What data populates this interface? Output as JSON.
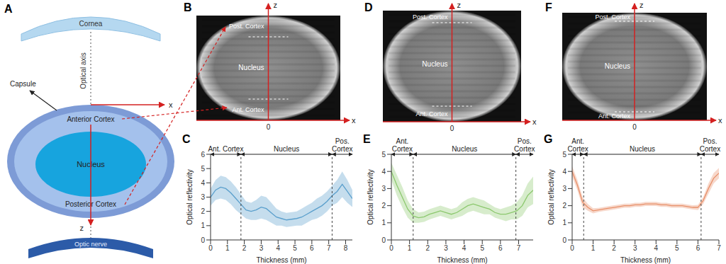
{
  "diagram": {
    "panel": "A",
    "labels": {
      "cornea": "Cornea",
      "optical_axis": "Optical axis",
      "capsule": "Capsule",
      "x_axis": "x",
      "anterior_cortex": "Anterior Cortex",
      "nucleus": "Nucleus",
      "posterior_cortex": "Posterior Cortex",
      "z_axis": "z",
      "optic_nerve": "Optic nerve"
    }
  },
  "images": [
    {
      "panel": "B",
      "z_axis": "z",
      "x_axis": "x",
      "origin": 0,
      "post_cortex": "Post. Cortex",
      "nucleus": "Nucleus",
      "ant_cortex": "Ant. Cortex"
    },
    {
      "panel": "D",
      "z_axis": "z",
      "x_axis": "x",
      "origin": 0,
      "post_cortex": "Post. Cortex",
      "nucleus": "Nucleus",
      "ant_cortex": "Ant. Cortex"
    },
    {
      "panel": "F",
      "z_axis": "z",
      "x_axis": "x",
      "origin": 0,
      "post_cortex": "Post. Cortex",
      "nucleus": "Nucleus",
      "ant_cortex": "Ant. Cortex"
    }
  ],
  "chart_data": [
    {
      "type": "line",
      "title": "C",
      "x_label": "Thickness (mm)",
      "y_label": "Optical reflectivity",
      "color": "#5a9fcc",
      "x": [
        0,
        0.3,
        0.6,
        0.9,
        1.2,
        1.5,
        1.8,
        2.1,
        2.4,
        2.7,
        3.0,
        3.3,
        3.6,
        3.9,
        4.2,
        4.5,
        4.8,
        5.1,
        5.4,
        5.7,
        6.0,
        6.3,
        6.6,
        6.9,
        7.2,
        7.5,
        7.8,
        8.1,
        8.4
      ],
      "values": [
        3.0,
        3.5,
        3.7,
        3.6,
        3.3,
        2.9,
        2.5,
        2.1,
        2.0,
        2.1,
        2.3,
        2.2,
        1.9,
        1.6,
        1.5,
        1.4,
        1.45,
        1.5,
        1.6,
        1.8,
        2.0,
        2.2,
        2.4,
        2.7,
        3.1,
        3.4,
        3.9,
        3.4,
        2.9
      ],
      "std": [
        0.6,
        0.7,
        0.8,
        0.8,
        0.8,
        0.8,
        0.7,
        0.6,
        0.6,
        0.7,
        0.8,
        0.8,
        0.7,
        0.6,
        0.5,
        0.5,
        0.5,
        0.5,
        0.6,
        0.6,
        0.6,
        0.7,
        0.7,
        0.7,
        0.7,
        0.8,
        0.9,
        0.8,
        0.6
      ],
      "xlim": [
        0,
        8.4
      ],
      "xticks": [
        0,
        1,
        2,
        3,
        4,
        5,
        6,
        7,
        8
      ],
      "ylim": [
        0,
        6
      ],
      "yticks": [
        0,
        1,
        2,
        3,
        4,
        5,
        6
      ],
      "boundaries": [
        1.8,
        7.2
      ],
      "annotations": [
        {
          "text": "Ant. Cortex",
          "from": 0,
          "to": 1.8
        },
        {
          "text": "Nucleus",
          "from": 1.8,
          "to": 7.2
        },
        {
          "text": "Pos. Cortex",
          "from": 7.2,
          "to": 8.4
        }
      ]
    },
    {
      "type": "line",
      "title": "E",
      "x_label": "Thickness (mm)",
      "y_label": "Optical reflectivity",
      "color": "#8cc86e",
      "x": [
        0,
        0.3,
        0.6,
        0.9,
        1.2,
        1.5,
        1.8,
        2.1,
        2.4,
        2.7,
        3.0,
        3.3,
        3.6,
        3.9,
        4.2,
        4.5,
        4.8,
        5.1,
        5.4,
        5.7,
        6.0,
        6.3,
        6.6,
        6.9,
        7.2,
        7.5,
        7.8
      ],
      "values": [
        4.0,
        3.2,
        2.5,
        1.8,
        1.4,
        1.3,
        1.35,
        1.5,
        1.6,
        1.7,
        1.6,
        1.5,
        1.6,
        1.8,
        2.0,
        2.1,
        2.0,
        1.9,
        1.8,
        1.6,
        1.5,
        1.5,
        1.6,
        1.7,
        2.0,
        2.6,
        2.9
      ],
      "std": [
        0.5,
        0.6,
        0.6,
        0.5,
        0.4,
        0.3,
        0.3,
        0.3,
        0.3,
        0.3,
        0.3,
        0.3,
        0.3,
        0.4,
        0.4,
        0.4,
        0.4,
        0.4,
        0.3,
        0.3,
        0.3,
        0.4,
        0.4,
        0.5,
        0.6,
        0.7,
        0.8
      ],
      "xlim": [
        0,
        7.8
      ],
      "xticks": [
        0,
        1,
        2,
        3,
        4,
        5,
        6,
        7
      ],
      "ylim": [
        0,
        5
      ],
      "yticks": [
        0,
        1,
        2,
        3,
        4,
        5
      ],
      "boundaries": [
        1.2,
        6.85
      ],
      "annotations": [
        {
          "text": "Ant. Cortex",
          "from": 0,
          "to": 1.2
        },
        {
          "text": "Nucleus",
          "from": 1.2,
          "to": 6.85
        },
        {
          "text": "Pos. Cortex",
          "from": 6.85,
          "to": 7.8
        }
      ]
    },
    {
      "type": "line",
      "title": "G",
      "x_label": "Thickness (mm)",
      "y_label": "Optical reflectivity",
      "color": "#e8906a",
      "x": [
        0,
        0.25,
        0.5,
        0.75,
        1.0,
        1.25,
        1.5,
        1.75,
        2.0,
        2.25,
        2.5,
        2.75,
        3.0,
        3.25,
        3.5,
        3.75,
        4.0,
        4.25,
        4.5,
        4.75,
        5.0,
        5.25,
        5.5,
        5.75,
        6.0,
        6.25,
        6.5,
        6.75,
        7.0
      ],
      "values": [
        4.0,
        3.2,
        2.2,
        1.9,
        1.7,
        1.75,
        1.8,
        1.85,
        1.9,
        1.95,
        2.0,
        2.0,
        2.05,
        2.05,
        2.1,
        2.1,
        2.1,
        2.05,
        2.05,
        2.0,
        2.0,
        2.0,
        1.95,
        1.9,
        1.9,
        2.3,
        3.0,
        3.6,
        3.9
      ],
      "std": [
        0.3,
        0.3,
        0.3,
        0.2,
        0.15,
        0.12,
        0.12,
        0.12,
        0.12,
        0.12,
        0.12,
        0.12,
        0.12,
        0.12,
        0.12,
        0.12,
        0.12,
        0.12,
        0.12,
        0.12,
        0.12,
        0.12,
        0.12,
        0.12,
        0.15,
        0.2,
        0.3,
        0.3,
        0.3
      ],
      "xlim": [
        0,
        7
      ],
      "xticks": [
        0,
        1,
        2,
        3,
        4,
        5,
        6,
        7
      ],
      "ylim": [
        0,
        5
      ],
      "yticks": [
        0,
        1,
        2,
        3,
        4,
        5
      ],
      "boundaries": [
        0.55,
        6.15
      ],
      "annotations": [
        {
          "text": "Ant. Cortex",
          "from": 0,
          "to": 0.55
        },
        {
          "text": "Nucleus",
          "from": 0.55,
          "to": 6.15
        },
        {
          "text": "Pos. Cortex",
          "from": 6.15,
          "to": 7
        }
      ]
    }
  ]
}
